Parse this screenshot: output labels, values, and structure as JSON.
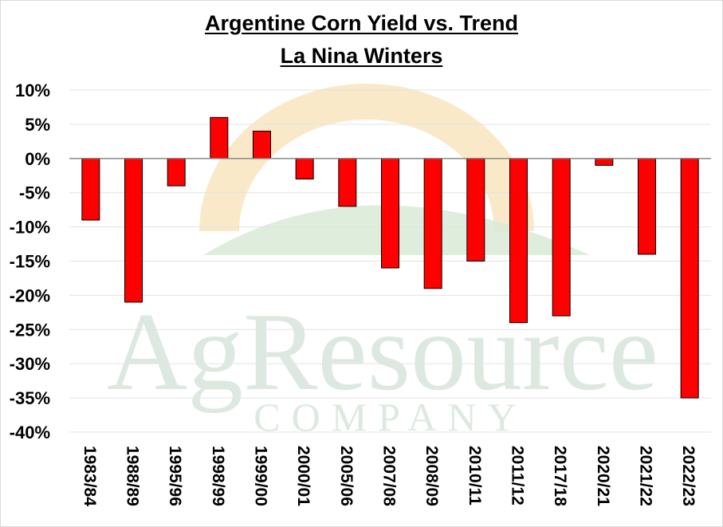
{
  "watermark": {
    "brand": "AgResource",
    "sub": "COMPANY",
    "colors": {
      "sun": "#f7e1b5",
      "hill": "#d8ead6",
      "text": "#dde9e0"
    }
  },
  "chart_data": {
    "type": "bar",
    "title": "Argentine Corn Yield vs. Trend",
    "subtitle": "La Nina Winters",
    "xlabel": "",
    "ylabel": "",
    "categories": [
      "1983/84",
      "1988/89",
      "1995/96",
      "1998/99",
      "1999/00",
      "2000/01",
      "2005/06",
      "2007/08",
      "2008/09",
      "2010/11",
      "2011/12",
      "2017/18",
      "2020/21",
      "2021/22",
      "2022/23"
    ],
    "values": [
      -9,
      -21,
      -4,
      6,
      4,
      -3,
      -7,
      -16,
      -19,
      -15,
      -24,
      -23,
      -1,
      -14,
      -35
    ],
    "value_unit": "%",
    "ylim": [
      -40,
      10
    ],
    "yticks": [
      10,
      5,
      0,
      -5,
      -10,
      -15,
      -20,
      -25,
      -30,
      -35,
      -40
    ],
    "ytick_labels": [
      "10%",
      "5%",
      "0%",
      "-5%",
      "-10%",
      "-15%",
      "-20%",
      "-25%",
      "-30%",
      "-35%",
      "-40%"
    ],
    "grid": true,
    "legend": "none",
    "colors": {
      "bar": "#ff0000",
      "bar_stroke": "#000000",
      "grid": "#e3e3e3",
      "zero_line": "#7f7f7f"
    }
  }
}
